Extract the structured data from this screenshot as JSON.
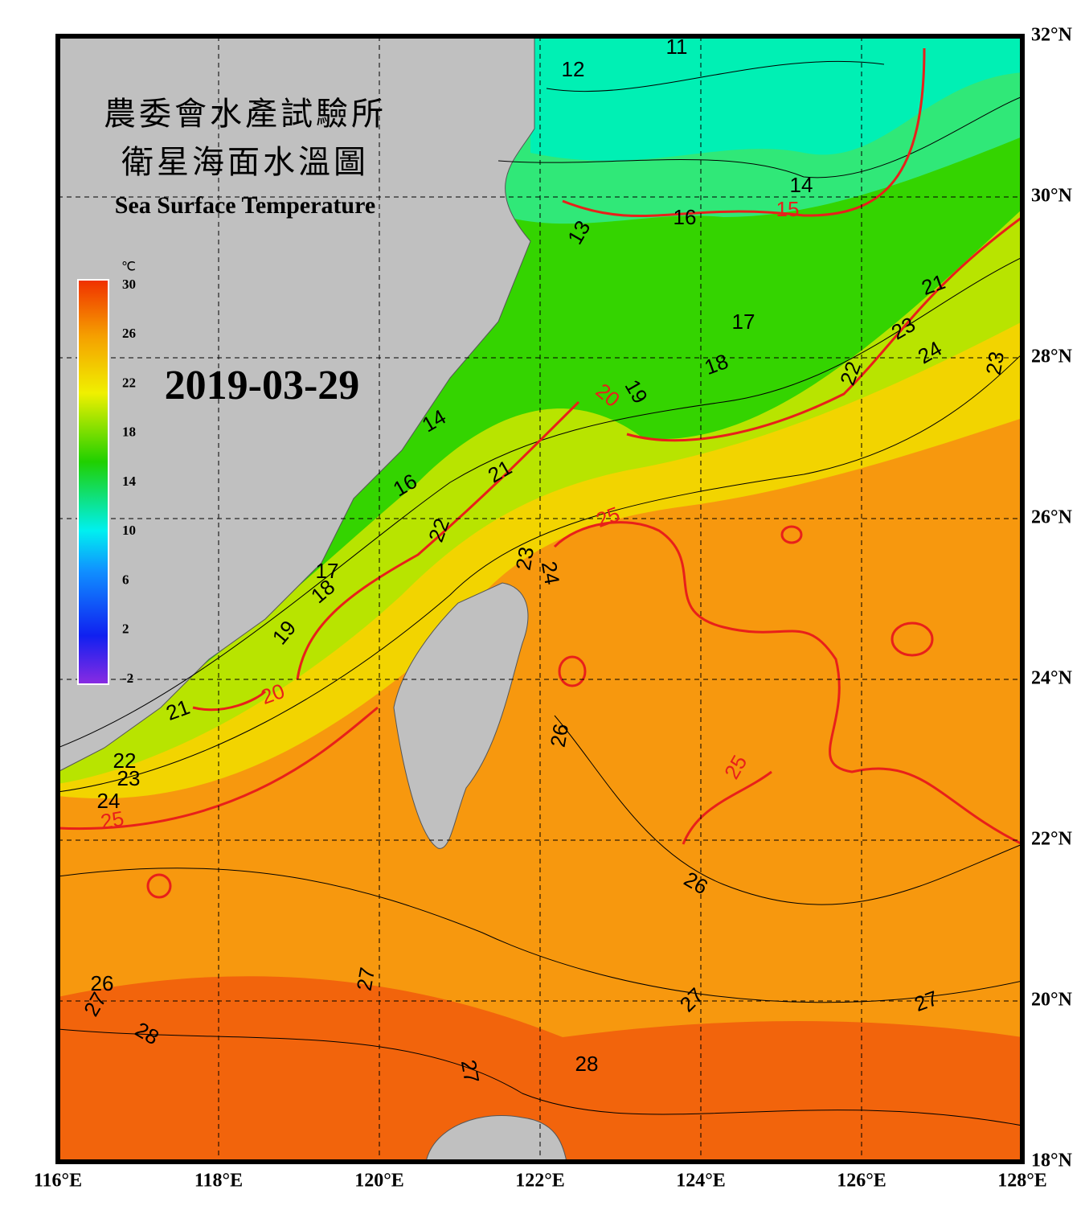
{
  "header": {
    "title_lines": [
      "農委會水產試驗所",
      "衛星海面水溫圖"
    ],
    "subtitle": "Sea Surface Temperature",
    "date": "2019-03-29"
  },
  "colorbar": {
    "unit": "℃",
    "ticks": [
      30,
      26,
      22,
      18,
      14,
      10,
      6,
      2,
      -2
    ]
  },
  "map": {
    "lon_labels": [
      "116°E",
      "118°E",
      "120°E",
      "122°E",
      "124°E",
      "126°E",
      "128°E"
    ],
    "lat_labels": [
      "32°N",
      "30°N",
      "28°N",
      "26°N",
      "24°N",
      "22°N",
      "20°N",
      "18°N"
    ],
    "contour_labels": [
      "11",
      "12",
      "14",
      "15",
      "16",
      "13",
      "21",
      "17",
      "23",
      "24",
      "23",
      "18",
      "22",
      "19",
      "20",
      "14",
      "21",
      "16",
      "25",
      "22",
      "23",
      "24",
      "17",
      "18",
      "19",
      "20",
      "21",
      "22",
      "23",
      "24",
      "25",
      "26",
      "25",
      "26",
      "27",
      "26",
      "27",
      "28",
      "27",
      "27",
      "27",
      "28"
    ]
  }
}
